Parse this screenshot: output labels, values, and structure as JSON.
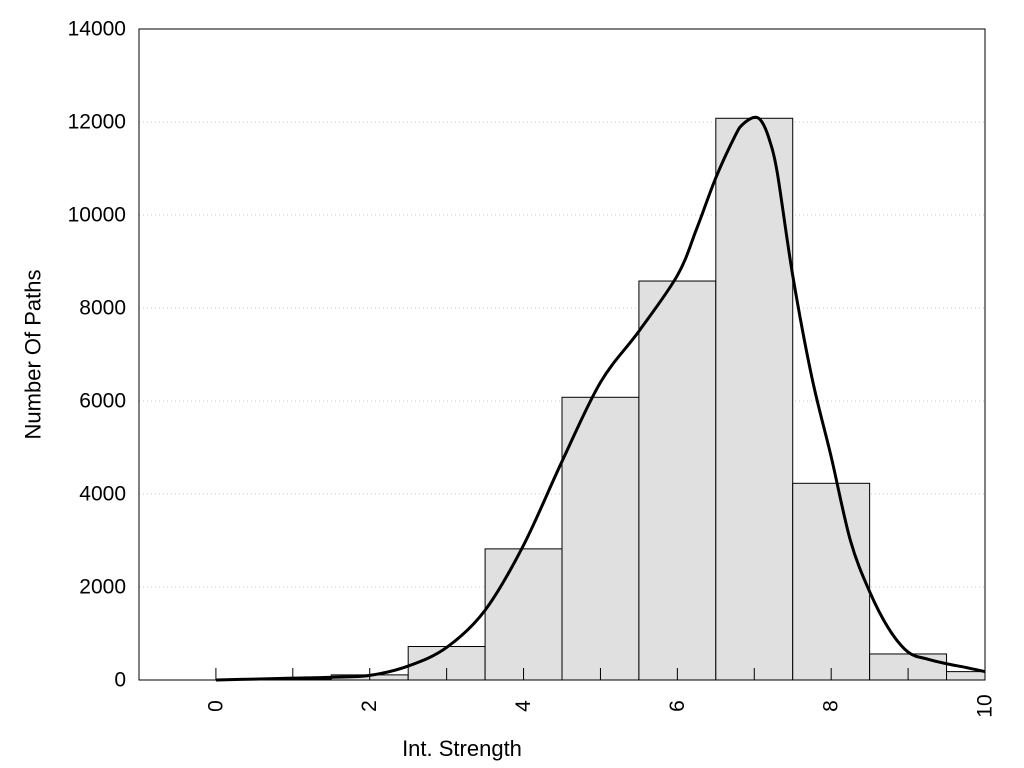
{
  "chart_data": {
    "type": "bar",
    "title": "",
    "xlabel": "Int. Strength",
    "ylabel": "Number Of Paths",
    "xlim": [
      -1,
      10
    ],
    "ylim": [
      0,
      14000
    ],
    "xticks": [
      0,
      2,
      4,
      6,
      8,
      10
    ],
    "yticks": [
      0,
      2000,
      4000,
      6000,
      8000,
      10000,
      12000,
      14000
    ],
    "grid": "horizontal-dotted",
    "bar_width": 1,
    "bar_color": "#e0e0e0",
    "bar_edge_color": "#000000",
    "line_color": "#000000",
    "bins": [
      {
        "center": 0,
        "value": 0
      },
      {
        "center": 1,
        "value": 20
      },
      {
        "center": 2,
        "value": 110
      },
      {
        "center": 3,
        "value": 720
      },
      {
        "center": 4,
        "value": 2820
      },
      {
        "center": 5,
        "value": 6080
      },
      {
        "center": 6,
        "value": 8580
      },
      {
        "center": 7,
        "value": 12080
      },
      {
        "center": 8,
        "value": 4230
      },
      {
        "center": 9,
        "value": 560
      },
      {
        "center": 10,
        "value": 180
      }
    ],
    "density_curve": {
      "x": [
        0,
        0.5,
        1,
        1.5,
        2,
        2.5,
        3,
        3.5,
        4,
        4.5,
        5,
        5.5,
        6,
        6.25,
        6.5,
        6.75,
        6.85,
        7,
        7.1,
        7.2,
        7.3,
        7.5,
        7.75,
        8,
        8.25,
        8.5,
        8.75,
        9,
        9.25,
        9.5,
        9.75,
        10
      ],
      "y": [
        0,
        20,
        40,
        60,
        100,
        300,
        700,
        1500,
        2900,
        4700,
        6400,
        7500,
        8700,
        9700,
        10800,
        11700,
        11950,
        12100,
        12000,
        11600,
        10900,
        8700,
        6500,
        4800,
        3000,
        1900,
        1100,
        600,
        450,
        350,
        270,
        180
      ]
    }
  }
}
